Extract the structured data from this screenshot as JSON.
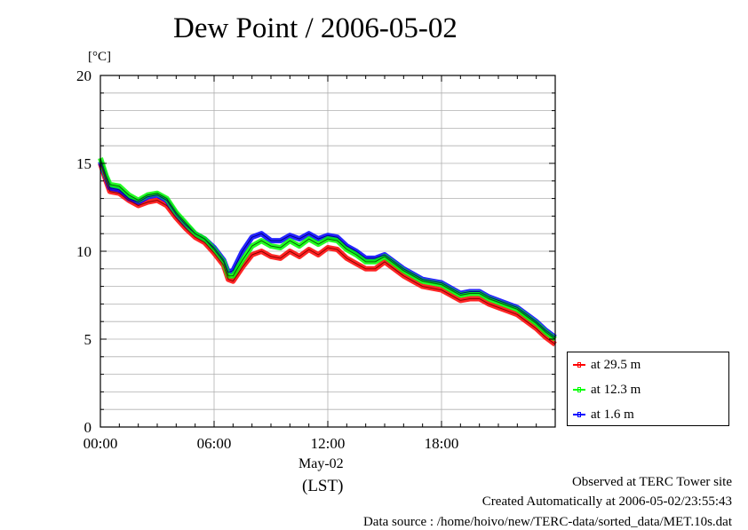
{
  "chart_data": {
    "type": "line",
    "title": "Dew Point / 2006-05-02",
    "ylabel": "[°C]",
    "xlabel": "May-02",
    "x_sublabel": "(LST)",
    "ylim": [
      0,
      20
    ],
    "xlim_hours": [
      0,
      24
    ],
    "y_ticks": [
      "0",
      "5",
      "10",
      "15",
      "20"
    ],
    "x_ticks": [
      "00:00",
      "06:00",
      "12:00",
      "18:00"
    ],
    "grid": true,
    "legend_position": "bottom-right outside",
    "x_hours": [
      0,
      0.3,
      0.5,
      1.0,
      1.5,
      2.0,
      2.5,
      3.0,
      3.5,
      4.0,
      4.5,
      5.0,
      5.5,
      6.0,
      6.5,
      6.75,
      7.0,
      7.5,
      8.0,
      8.5,
      9.0,
      9.5,
      10.0,
      10.5,
      11.0,
      11.5,
      12.0,
      12.5,
      13.0,
      13.5,
      14.0,
      14.5,
      15.0,
      15.5,
      16.0,
      16.5,
      17.0,
      17.5,
      18.0,
      18.5,
      19.0,
      19.5,
      20.0,
      20.5,
      21.0,
      21.5,
      22.0,
      22.5,
      23.0,
      23.5,
      24.0
    ],
    "series": [
      {
        "name": "at 29.5 m",
        "color": "#ff0000",
        "values": [
          15.0,
          14.0,
          13.4,
          13.3,
          12.9,
          12.6,
          12.8,
          12.9,
          12.6,
          11.9,
          11.3,
          10.8,
          10.5,
          9.9,
          9.2,
          8.4,
          8.3,
          9.1,
          9.8,
          10.0,
          9.7,
          9.6,
          10.0,
          9.7,
          10.1,
          9.8,
          10.2,
          10.1,
          9.6,
          9.3,
          9.0,
          9.0,
          9.4,
          9.0,
          8.6,
          8.3,
          8.0,
          7.9,
          7.8,
          7.5,
          7.2,
          7.3,
          7.3,
          7.0,
          6.8,
          6.6,
          6.4,
          6.0,
          5.6,
          5.1,
          4.7
        ]
      },
      {
        "name": "at 12.3 m",
        "color": "#00ff00",
        "values": [
          15.3,
          14.3,
          13.8,
          13.7,
          13.2,
          12.9,
          13.2,
          13.3,
          13.0,
          12.2,
          11.6,
          11.0,
          10.7,
          10.1,
          9.4,
          8.6,
          8.6,
          9.5,
          10.3,
          10.6,
          10.3,
          10.2,
          10.6,
          10.3,
          10.7,
          10.4,
          10.7,
          10.6,
          10.1,
          9.8,
          9.4,
          9.4,
          9.7,
          9.3,
          8.9,
          8.6,
          8.3,
          8.2,
          8.1,
          7.8,
          7.5,
          7.6,
          7.6,
          7.3,
          7.1,
          6.9,
          6.7,
          6.3,
          5.9,
          5.4,
          5.0
        ]
      },
      {
        "name": "at 1.6 m",
        "color": "#0000ff",
        "values": [
          15.1,
          14.2,
          13.6,
          13.5,
          13.0,
          12.8,
          13.1,
          13.2,
          12.9,
          12.1,
          11.5,
          11.0,
          10.7,
          10.2,
          9.5,
          8.8,
          8.9,
          10.0,
          10.8,
          11.0,
          10.6,
          10.6,
          10.9,
          10.7,
          11.0,
          10.7,
          10.9,
          10.8,
          10.3,
          10.0,
          9.6,
          9.6,
          9.8,
          9.4,
          9.0,
          8.7,
          8.4,
          8.3,
          8.2,
          7.9,
          7.6,
          7.7,
          7.7,
          7.4,
          7.2,
          7.0,
          6.8,
          6.4,
          6.0,
          5.5,
          5.1
        ]
      }
    ]
  },
  "footer": {
    "site": "Observed at TERC Tower site",
    "created": "Created Automatically at 2006-05-02/23:55:43",
    "source": "Data source : /home/hoivo/new/TERC-data/sorted_data/MET.10s.dat"
  }
}
